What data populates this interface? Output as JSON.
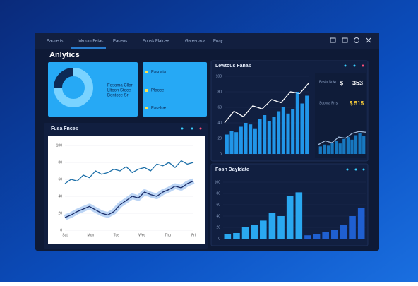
{
  "nav": {
    "tabs": [
      "Pacnetts",
      "Inkoom Fetac",
      "Paceos",
      "Fonsk Flatcee",
      "Gatesnaca",
      "Poay"
    ]
  },
  "title": "Anlytics",
  "donut": {
    "values": [
      75,
      25
    ],
    "colors": [
      "#7ad3ff",
      "#0d2a55"
    ]
  },
  "card": {
    "lines": [
      "Fosoma Cllar",
      "Lltoon Stoce",
      "Bontoce Sr"
    ]
  },
  "card2": {
    "items": [
      "Fasrwia",
      "Plaoce",
      "Fassloe"
    ]
  },
  "stats": {
    "items": [
      "Faslo Sclw",
      "Sconra Frrs"
    ],
    "big": [
      "$",
      "353",
      "$ 515"
    ]
  },
  "panels": [
    "Fusa Fnces",
    "Lewtous Fanas",
    "Fosh Dayldate"
  ],
  "charts": [
    {
      "type": "line",
      "ylim": [
        0,
        100
      ],
      "yticks": [
        0,
        20,
        40,
        60,
        80,
        100
      ],
      "xlabels": [
        "Sat",
        "Mon",
        "Tue",
        "Wed",
        "Thu",
        "Fri"
      ],
      "series": [
        {
          "type": "line",
          "color": "#1c6fa8",
          "values": [
            55,
            60,
            58,
            65,
            62,
            70,
            66,
            68,
            72,
            70,
            75,
            68,
            72,
            74,
            70,
            78,
            76,
            80,
            74,
            82,
            78,
            80
          ]
        },
        {
          "type": "line",
          "color": "#1a2e6a",
          "band": "#8fb9ee",
          "values": [
            15,
            18,
            22,
            25,
            28,
            24,
            20,
            18,
            22,
            30,
            35,
            40,
            38,
            45,
            42,
            40,
            45,
            48,
            52,
            50,
            55,
            58
          ]
        }
      ]
    },
    {
      "type": "bar",
      "ylim": [
        0,
        100
      ],
      "yticks": [
        0,
        20,
        40,
        60,
        80,
        100
      ],
      "series": [
        {
          "type": "bar",
          "color": "#2196e8",
          "values": [
            25,
            30,
            28,
            35,
            40,
            38,
            33,
            45,
            50,
            42,
            48,
            55,
            60,
            52,
            58,
            80,
            65,
            75
          ]
        },
        {
          "type": "line",
          "color": "#ffffff",
          "values": [
            40,
            55,
            48,
            62,
            58,
            70,
            66,
            80,
            78,
            92
          ]
        }
      ]
    },
    {
      "type": "bar",
      "ylim": [
        0,
        100
      ],
      "series": [
        {
          "type": "bar",
          "color": "#1778c0",
          "values": [
            20,
            25,
            22,
            30,
            35,
            28,
            40,
            45,
            38,
            50,
            55,
            48
          ]
        },
        {
          "type": "line",
          "color": "#9fb8d8",
          "values": [
            25,
            35,
            30,
            45,
            42,
            55,
            60,
            58
          ]
        }
      ]
    },
    {
      "type": "bar",
      "ylim": [
        0,
        100
      ],
      "yticks": [
        0,
        20,
        40,
        60,
        80,
        100
      ],
      "series": [
        {
          "type": "bar",
          "color": "#2aa8f0",
          "values": [
            8,
            10,
            20,
            25,
            32,
            45,
            40,
            75,
            82,
            null,
            null,
            null,
            null,
            null,
            null,
            null
          ]
        },
        {
          "type": "bar",
          "color": "#1f5fd0",
          "values": [
            null,
            null,
            null,
            null,
            null,
            null,
            null,
            null,
            null,
            6,
            8,
            12,
            15,
            25,
            40,
            55
          ]
        }
      ]
    }
  ]
}
